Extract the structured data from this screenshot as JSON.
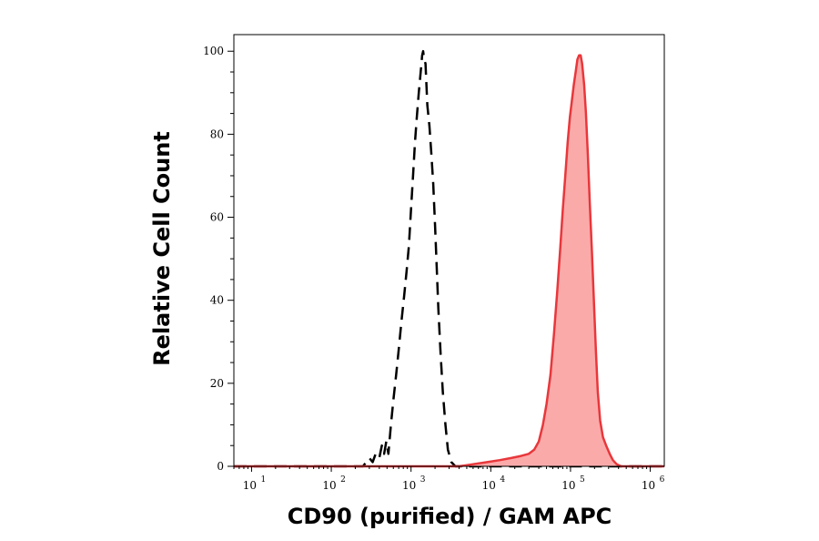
{
  "chart_data": {
    "type": "area",
    "xlabel": "CD90 (purified) / GAM APC",
    "ylabel": "Relative Cell Count",
    "x_scale": "log",
    "xlim": [
      6,
      1500000
    ],
    "ylim": [
      0,
      104
    ],
    "x_ticks": [
      {
        "value": 10,
        "base": "10",
        "exp": "1"
      },
      {
        "value": 100,
        "base": "10",
        "exp": "2"
      },
      {
        "value": 1000,
        "base": "10",
        "exp": "3"
      },
      {
        "value": 10000,
        "base": "10",
        "exp": "4"
      },
      {
        "value": 100000,
        "base": "10",
        "exp": "5"
      },
      {
        "value": 1000000,
        "base": "10",
        "exp": "6"
      }
    ],
    "y_ticks": [
      {
        "value": 0,
        "label": "0"
      },
      {
        "value": 20,
        "label": "20"
      },
      {
        "value": 40,
        "label": "40"
      },
      {
        "value": 60,
        "label": "60"
      },
      {
        "value": 80,
        "label": "80"
      },
      {
        "value": 100,
        "label": "100"
      }
    ],
    "grid": false,
    "legend": "none",
    "series": [
      {
        "style": "dashed-line",
        "color": "#000000",
        "points": [
          [
            6,
            0
          ],
          [
            250,
            0
          ],
          [
            300,
            2
          ],
          [
            330,
            1
          ],
          [
            360,
            3
          ],
          [
            400,
            2
          ],
          [
            430,
            5
          ],
          [
            460,
            3
          ],
          [
            490,
            6
          ],
          [
            520,
            3
          ],
          [
            560,
            10
          ],
          [
            600,
            16
          ],
          [
            650,
            22
          ],
          [
            700,
            28
          ],
          [
            760,
            35
          ],
          [
            820,
            41
          ],
          [
            880,
            47
          ],
          [
            940,
            53
          ],
          [
            1000,
            62
          ],
          [
            1060,
            70
          ],
          [
            1120,
            78
          ],
          [
            1180,
            84
          ],
          [
            1250,
            90
          ],
          [
            1320,
            95
          ],
          [
            1380,
            99
          ],
          [
            1420,
            100
          ],
          [
            1460,
            98
          ],
          [
            1520,
            97
          ],
          [
            1560,
            92
          ],
          [
            1600,
            87
          ],
          [
            1700,
            82
          ],
          [
            1800,
            75
          ],
          [
            1900,
            68
          ],
          [
            2000,
            58
          ],
          [
            2100,
            48
          ],
          [
            2200,
            38
          ],
          [
            2350,
            27
          ],
          [
            2500,
            18
          ],
          [
            2700,
            10
          ],
          [
            2900,
            4
          ],
          [
            3200,
            1
          ],
          [
            3600,
            0
          ],
          [
            1500000,
            0
          ]
        ]
      },
      {
        "style": "filled",
        "color": "#e8373b",
        "fill": "#fbaaaa",
        "points": [
          [
            6,
            0
          ],
          [
            4000,
            0
          ],
          [
            6000,
            0.5
          ],
          [
            9000,
            1
          ],
          [
            13000,
            1.5
          ],
          [
            18000,
            2
          ],
          [
            24000,
            2.5
          ],
          [
            30000,
            3
          ],
          [
            35000,
            4
          ],
          [
            40000,
            6
          ],
          [
            45000,
            10
          ],
          [
            50000,
            15
          ],
          [
            56000,
            22
          ],
          [
            62000,
            32
          ],
          [
            68000,
            42
          ],
          [
            74000,
            52
          ],
          [
            80000,
            62
          ],
          [
            86000,
            70
          ],
          [
            92000,
            78
          ],
          [
            98000,
            84
          ],
          [
            104000,
            88
          ],
          [
            110000,
            92
          ],
          [
            116000,
            95
          ],
          [
            122000,
            98
          ],
          [
            128000,
            99
          ],
          [
            134000,
            99
          ],
          [
            140000,
            97
          ],
          [
            148000,
            92
          ],
          [
            156000,
            85
          ],
          [
            165000,
            75
          ],
          [
            175000,
            63
          ],
          [
            185000,
            52
          ],
          [
            196000,
            40
          ],
          [
            208000,
            28
          ],
          [
            220000,
            18
          ],
          [
            235000,
            11
          ],
          [
            255000,
            7
          ],
          [
            280000,
            5
          ],
          [
            310000,
            3
          ],
          [
            340000,
            1.5
          ],
          [
            380000,
            0.5
          ],
          [
            430000,
            0
          ],
          [
            1500000,
            0
          ]
        ]
      }
    ]
  }
}
